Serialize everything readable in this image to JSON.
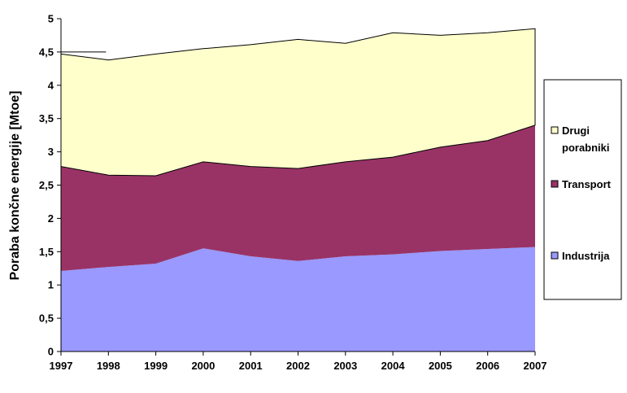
{
  "chart_data": {
    "type": "area",
    "stacked": true,
    "title": "",
    "xlabel": "",
    "ylabel": "Poraba končne energije [Mtoe]",
    "x": [
      "1997",
      "1998",
      "1999",
      "2000",
      "2001",
      "2002",
      "2003",
      "2004",
      "2005",
      "2006",
      "2007"
    ],
    "y_ticks": [
      "0",
      "0,5",
      "1",
      "1,5",
      "2",
      "2,5",
      "3",
      "3,5",
      "4",
      "4,5",
      "5"
    ],
    "ylim": [
      0,
      5
    ],
    "grid": false,
    "legend_position": "right",
    "series": [
      {
        "name": "Industrija",
        "color": "#9999ff",
        "values": [
          1.21,
          1.27,
          1.32,
          1.55,
          1.43,
          1.36,
          1.43,
          1.46,
          1.51,
          1.54,
          1.57
        ]
      },
      {
        "name": "Transport",
        "color": "#993366",
        "values": [
          1.57,
          1.38,
          1.32,
          1.3,
          1.35,
          1.39,
          1.42,
          1.46,
          1.56,
          1.63,
          1.83
        ]
      },
      {
        "name": "Drugi porabniki",
        "color": "#ffffcc",
        "values": [
          1.69,
          1.73,
          1.83,
          1.7,
          1.83,
          1.94,
          1.78,
          1.87,
          1.68,
          1.62,
          1.45
        ]
      }
    ],
    "legend": [
      {
        "series": "Drugi porabniki",
        "lines": [
          "Drugi",
          "porabniki"
        ]
      },
      {
        "series": "Transport",
        "lines": [
          "Transport"
        ]
      },
      {
        "series": "Industrija",
        "lines": [
          "Industrija"
        ]
      }
    ]
  }
}
